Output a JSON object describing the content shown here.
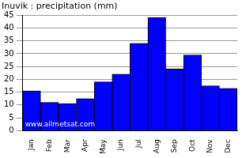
{
  "chart_data": {
    "type": "bar",
    "title": "Inuvik : precipitation (mm)",
    "categories": [
      "Jan",
      "Feb",
      "Mar",
      "Apr",
      "May",
      "Jun",
      "Jul",
      "Aug",
      "Sep",
      "Oct",
      "Nov",
      "Dec"
    ],
    "values": [
      15.5,
      11,
      10.5,
      12.5,
      19,
      22,
      34,
      44,
      24,
      29.5,
      17.5,
      16.5
    ],
    "color": "#0000ff",
    "ylim": [
      0,
      45
    ],
    "yticks": [
      0,
      5,
      10,
      15,
      20,
      25,
      30,
      35,
      40,
      45
    ],
    "grid": true,
    "annotations": [
      "www.allmetsat.com"
    ]
  }
}
